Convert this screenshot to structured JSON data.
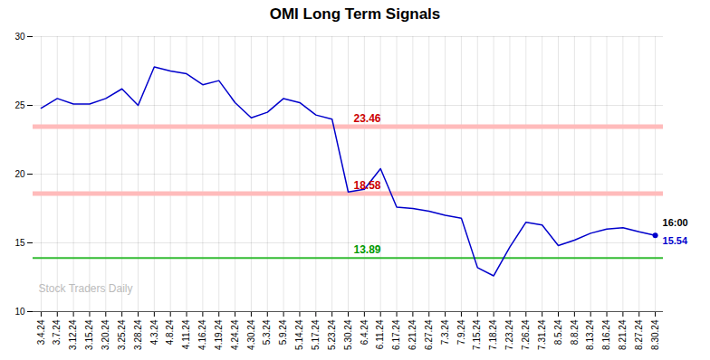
{
  "chart_data": {
    "type": "line",
    "title": "OMI Long Term Signals",
    "categories": [
      "3.4.24",
      "3.7.24",
      "3.12.24",
      "3.15.24",
      "3.20.24",
      "3.25.24",
      "3.28.24",
      "4.3.24",
      "4.8.24",
      "4.11.24",
      "4.16.24",
      "4.19.24",
      "4.24.24",
      "4.30.24",
      "5.3.24",
      "5.9.24",
      "5.14.24",
      "5.17.24",
      "5.23.24",
      "5.30.24",
      "6.4.24",
      "6.11.24",
      "6.17.24",
      "6.21.24",
      "6.27.24",
      "7.3.24",
      "7.9.24",
      "7.15.24",
      "7.18.24",
      "7.23.24",
      "7.26.24",
      "7.31.24",
      "8.5.24",
      "8.8.24",
      "8.13.24",
      "8.16.24",
      "8.21.24",
      "8.27.24",
      "8.30.24"
    ],
    "values": [
      24.8,
      25.5,
      25.1,
      25.1,
      25.5,
      26.2,
      25.0,
      27.8,
      27.5,
      27.3,
      26.5,
      26.8,
      25.2,
      24.1,
      24.5,
      25.5,
      25.2,
      24.3,
      24.0,
      18.7,
      18.9,
      20.4,
      17.6,
      17.5,
      17.3,
      17.0,
      16.8,
      13.2,
      12.6,
      14.7,
      16.5,
      16.3,
      14.8,
      15.2,
      15.7,
      16.0,
      16.1,
      15.8,
      15.54
    ],
    "color": "#0000cc",
    "ylim": [
      10,
      30
    ],
    "yticks": [
      10,
      15,
      20,
      25,
      30
    ],
    "grid": true,
    "hlines": [
      {
        "y": 23.46,
        "label": "23.46",
        "color": "#ffbbbb",
        "label_color": "#cc0000"
      },
      {
        "y": 18.58,
        "label": "18.58",
        "color": "#ffbbbb",
        "label_color": "#cc0000"
      },
      {
        "y": 13.89,
        "label": "13.89",
        "color": "#33bb33",
        "label_color": "#009900"
      }
    ],
    "last_label": "16:00",
    "last_value_label": "15.54",
    "endpoint_color": "#0000cc",
    "watermark": "Stock Traders Daily",
    "watermark_color": "#bbbbbb"
  }
}
